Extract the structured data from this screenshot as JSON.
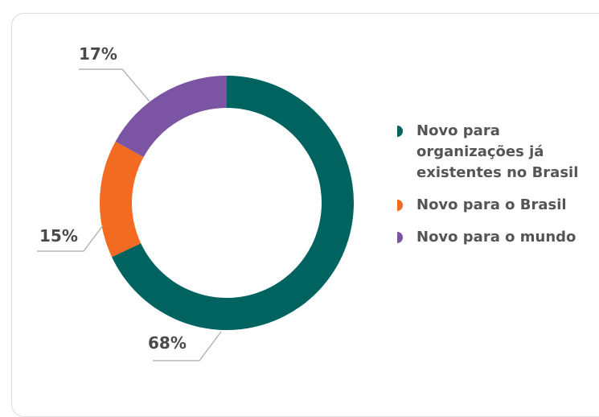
{
  "chart_data": {
    "type": "pie",
    "donut": true,
    "categories": [
      "Novo para organizações já existentes no Brasil",
      "Novo para o Brasil",
      "Novo para o mundo"
    ],
    "values": [
      68,
      15,
      17
    ],
    "value_labels": [
      "68%",
      "15%",
      "17%"
    ],
    "colors": [
      "#006360",
      "#f26b21",
      "#7b55a4"
    ],
    "legend_position": "right"
  }
}
